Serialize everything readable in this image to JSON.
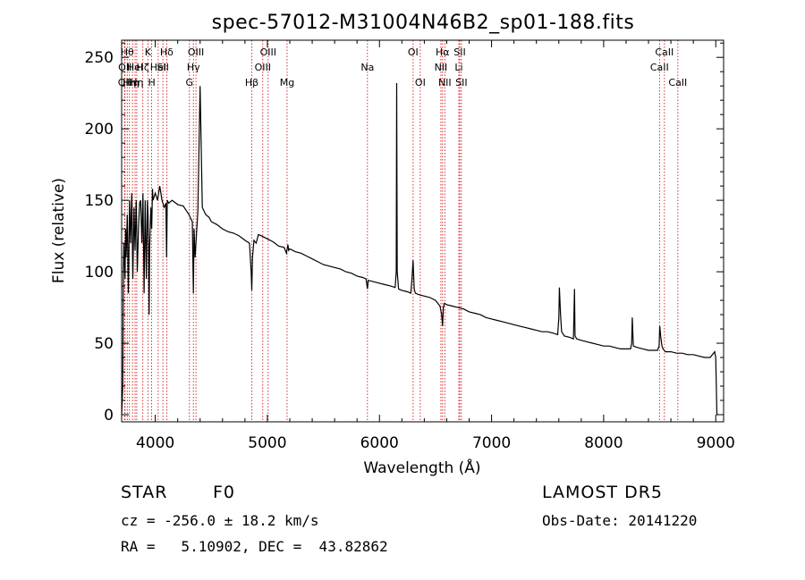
{
  "chart_data": {
    "type": "line",
    "title": "spec-57012-M31004N46B2_sp01-188.fits",
    "xlabel": "Wavelength (Å)",
    "ylabel": "Flux (relative)",
    "xlim": [
      3700,
      9070
    ],
    "ylim": [
      -5,
      262
    ],
    "xticks": [
      4000,
      5000,
      6000,
      7000,
      8000,
      9000
    ],
    "yticks": [
      0,
      50,
      100,
      150,
      200,
      250
    ],
    "grid": false,
    "line_color": "#000000",
    "marker_line_color": "#cc0000",
    "series": [
      {
        "x": [
          3700,
          3710,
          3715,
          3720,
          3730,
          3735,
          3740,
          3750,
          3760,
          3770,
          3780,
          3790,
          3800,
          3810,
          3820,
          3830,
          3840,
          3850,
          3860,
          3870,
          3880,
          3890,
          3900,
          3910,
          3920,
          3930,
          3935,
          3940,
          3945,
          3950,
          3960,
          3968,
          3975,
          3980,
          4000,
          4020,
          4040,
          4060,
          4080,
          4095,
          4101,
          4107,
          4120,
          4150,
          4200,
          4250,
          4300,
          4330,
          4340,
          4346,
          4355,
          4380,
          4400,
          4420,
          4450,
          4480,
          4500,
          4550,
          4600,
          4650,
          4700,
          4750,
          4800,
          4840,
          4855,
          4861,
          4867,
          4880,
          4900,
          4920,
          4950,
          5000,
          5050,
          5100,
          5150,
          5170,
          5183,
          5190,
          5200,
          5250,
          5300,
          5350,
          5400,
          5450,
          5500,
          5550,
          5600,
          5650,
          5700,
          5750,
          5800,
          5850,
          5880,
          5893,
          5900,
          5950,
          6000,
          6050,
          6100,
          6140,
          6150,
          6154,
          6158,
          6170,
          6200,
          6250,
          6280,
          6290,
          6300,
          6310,
          6320,
          6350,
          6400,
          6450,
          6500,
          6540,
          6555,
          6563,
          6570,
          6580,
          6600,
          6650,
          6700,
          6750,
          6800,
          6850,
          6900,
          6950,
          7000,
          7050,
          7100,
          7150,
          7200,
          7250,
          7300,
          7350,
          7400,
          7450,
          7500,
          7550,
          7590,
          7600,
          7605,
          7615,
          7625,
          7650,
          7700,
          7730,
          7740,
          7745,
          7760,
          7800,
          7850,
          7900,
          7950,
          8000,
          8050,
          8100,
          8150,
          8200,
          8240,
          8250,
          8255,
          8265,
          8300,
          8350,
          8400,
          8450,
          8480,
          8495,
          8500,
          8510,
          8520,
          8530,
          8540,
          8550,
          8600,
          8650,
          8700,
          8750,
          8800,
          8850,
          8900,
          8950,
          8990,
          9000,
          9010,
          9020
        ],
        "y": [
          0,
          20,
          100,
          120,
          95,
          130,
          110,
          140,
          85,
          150,
          120,
          155,
          95,
          145,
          115,
          150,
          100,
          130,
          148,
          150,
          120,
          155,
          85,
          150,
          95,
          150,
          140,
          120,
          70,
          115,
          145,
          130,
          158,
          150,
          155,
          150,
          160,
          150,
          145,
          148,
          110,
          150,
          148,
          150,
          147,
          146,
          140,
          135,
          85,
          130,
          110,
          142,
          230,
          145,
          140,
          138,
          135,
          133,
          130,
          128,
          127,
          125,
          122,
          120,
          100,
          87,
          110,
          122,
          120,
          126,
          125,
          123,
          121,
          118,
          117,
          113,
          119,
          115,
          116,
          114,
          113,
          111,
          109,
          107,
          105,
          104,
          103,
          102,
          100,
          99,
          97,
          96,
          95,
          88,
          94,
          93,
          92,
          91,
          90,
          89,
          100,
          232,
          100,
          88,
          87,
          86,
          85,
          95,
          108,
          88,
          85,
          84,
          83,
          82,
          80,
          76,
          70,
          62,
          75,
          78,
          77,
          76,
          75,
          74,
          72,
          71,
          70,
          68,
          67,
          66,
          65,
          64,
          63,
          62,
          61,
          60,
          59,
          58,
          58,
          57,
          56,
          68,
          89,
          70,
          58,
          55,
          54,
          53,
          88,
          55,
          53,
          52,
          51,
          50,
          49,
          48,
          48,
          47,
          46,
          46,
          46,
          50,
          68,
          48,
          47,
          46,
          45,
          45,
          45,
          48,
          62,
          54,
          48,
          46,
          45,
          44,
          44,
          43,
          43,
          42,
          42,
          41,
          40,
          40,
          44,
          40,
          0,
          0
        ]
      }
    ],
    "line_markers": [
      {
        "x": 3727,
        "name": "OII",
        "row": 2
      },
      {
        "x": 3730,
        "name": "OII",
        "row": 1
      },
      {
        "x": 3750,
        "name": "Hθ",
        "row": 0
      },
      {
        "x": 3770,
        "name": "Hη",
        "row": 2
      },
      {
        "x": 3797,
        "name": "Hη",
        "row": 2
      },
      {
        "x": 3820,
        "name": "HeI",
        "row": 1
      },
      {
        "x": 3835,
        "name": "Hη",
        "row": 2
      },
      {
        "x": 3889,
        "name": "Hζ",
        "row": 1
      },
      {
        "x": 3934,
        "name": "K",
        "row": 0
      },
      {
        "x": 3968,
        "name": "H",
        "row": 2
      },
      {
        "x": 4026,
        "name": "HeI",
        "row": 1
      },
      {
        "x": 4068,
        "name": "SII",
        "row": 1
      },
      {
        "x": 4102,
        "name": "Hδ",
        "row": 0
      },
      {
        "x": 4305,
        "name": "G",
        "row": 2
      },
      {
        "x": 4340,
        "name": "Hγ",
        "row": 1
      },
      {
        "x": 4363,
        "name": "OIII",
        "row": 0
      },
      {
        "x": 4861,
        "name": "Hβ",
        "row": 2
      },
      {
        "x": 4959,
        "name": "OIII",
        "row": 1
      },
      {
        "x": 5007,
        "name": "OIII",
        "row": 0
      },
      {
        "x": 5176,
        "name": "Mg",
        "row": 2
      },
      {
        "x": 5893,
        "name": "Na",
        "row": 1
      },
      {
        "x": 6300,
        "name": "OI",
        "row": 0
      },
      {
        "x": 6364,
        "name": "OI",
        "row": 2
      },
      {
        "x": 6548,
        "name": "NII",
        "row": 1
      },
      {
        "x": 6563,
        "name": "Hα",
        "row": 0
      },
      {
        "x": 6583,
        "name": "NII",
        "row": 2
      },
      {
        "x": 6708,
        "name": "Li",
        "row": 1
      },
      {
        "x": 6716,
        "name": "SII",
        "row": 0
      },
      {
        "x": 6731,
        "name": "SII",
        "row": 2
      },
      {
        "x": 8498,
        "name": "CaII",
        "row": 1
      },
      {
        "x": 8542,
        "name": "CaII",
        "row": 0
      },
      {
        "x": 8662,
        "name": "CaII",
        "row": 2
      }
    ]
  },
  "info": {
    "object_class": "STAR",
    "subclass": "F0",
    "survey": "LAMOST DR5",
    "redshift_line": "cz = -256.0 ± 18.2 km/s",
    "obs_date_line": "Obs-Date: 20141220",
    "coords_line": "RA =   5.10902, DEC =  43.82862"
  }
}
